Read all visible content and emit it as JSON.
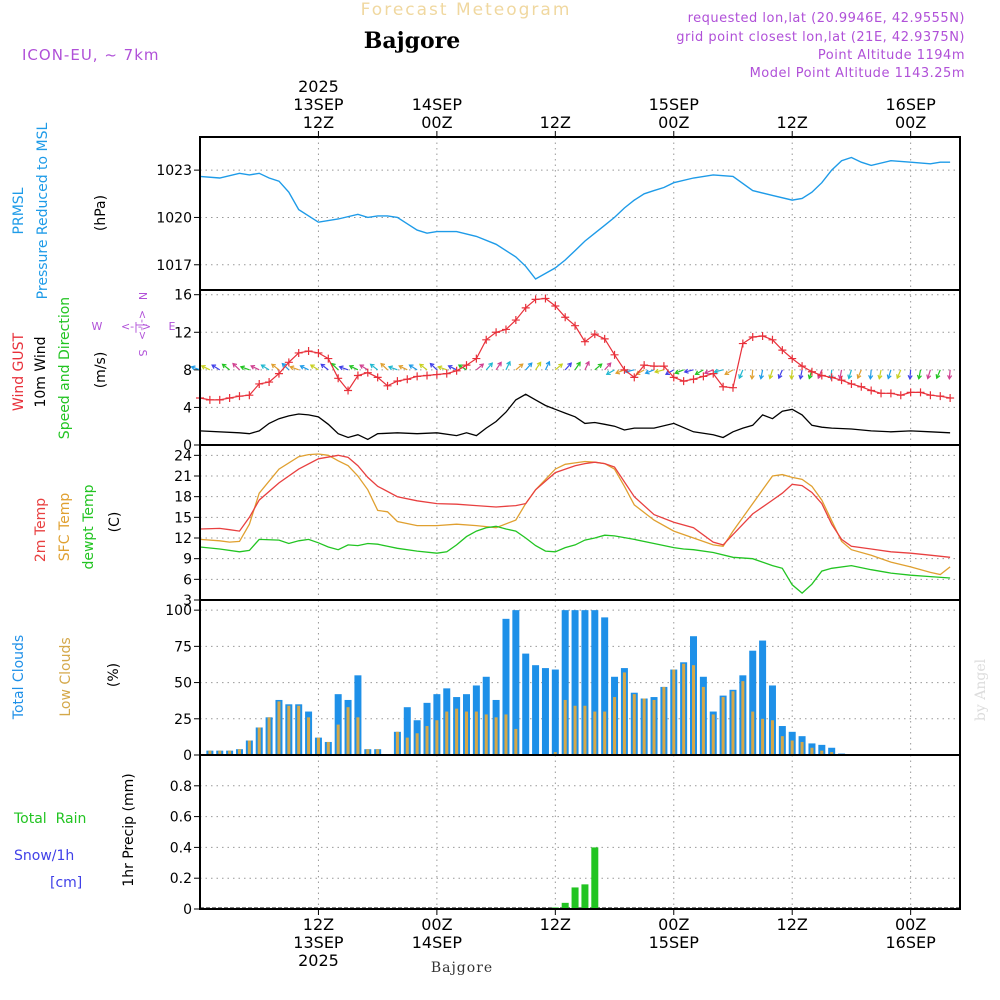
{
  "header": {
    "title": "Forecast Meteogram",
    "location": "Bajgore",
    "model": "ICON-EU, ~ 7km",
    "requested": "requested lon,lat (20.9946E, 42.9555N)",
    "grid_point": "grid point closest lon,lat (21E, 42.9375N)",
    "point_altitude": "Point Altitude 1194m",
    "model_altitude": "Model Point Altitude 1143.25m",
    "credit": "by Angel",
    "footer_location": "Bajgore"
  },
  "time_axis": {
    "top_labels": [
      {
        "x_h": 12,
        "lines": [
          "2025",
          "13SEP",
          "12Z"
        ]
      },
      {
        "x_h": 24,
        "lines": [
          "14SEP",
          "00Z"
        ]
      },
      {
        "x_h": 36,
        "lines": [
          "12Z"
        ]
      },
      {
        "x_h": 48,
        "lines": [
          "15SEP",
          "00Z"
        ]
      },
      {
        "x_h": 60,
        "lines": [
          "12Z"
        ]
      },
      {
        "x_h": 72,
        "lines": [
          "16SEP",
          "00Z"
        ]
      }
    ],
    "bottom_labels": [
      {
        "x_h": 12,
        "lines": [
          "12Z",
          "13SEP",
          "2025"
        ]
      },
      {
        "x_h": 24,
        "lines": [
          "00Z",
          "14SEP"
        ]
      },
      {
        "x_h": 36,
        "lines": [
          "12Z"
        ]
      },
      {
        "x_h": 48,
        "lines": [
          "00Z",
          "15SEP"
        ]
      },
      {
        "x_h": 60,
        "lines": [
          "12Z"
        ]
      },
      {
        "x_h": 72,
        "lines": [
          "00Z",
          "16SEP"
        ]
      }
    ]
  },
  "labels": {
    "pressure": [
      "PRMSL",
      "Pressure Reduced to MSL"
    ],
    "pressure_unit": "(hPa)",
    "wind_gust": "Wind GUST",
    "wind_10m": "10m Wind",
    "wind_speed_dir": "Speed and Direction",
    "wind_unit": "(m/s)",
    "compass": {
      "n": "N",
      "s": "S",
      "w": "W",
      "e": "E",
      "arrows": "<-|->"
    },
    "temp_2m": "2m Temp",
    "temp_sfc": "SFC Temp",
    "temp_dewpt": "dewpt Temp",
    "temp_unit": "(C)",
    "total_clouds": "Total Clouds",
    "low_clouds": "Low Clouds",
    "cloud_unit": "(%)",
    "total_rain": "Total  Rain",
    "snow": "Snow/1h",
    "snow_unit": "[cm]",
    "precip": "1hr Precip (mm)"
  },
  "colors": {
    "pressure": "#1e9be8",
    "gust": "#e8303a",
    "wind10m": "#000000",
    "temp2m": "#e84040",
    "sfc": "#e0a030",
    "dewpt": "#22c422",
    "total_cloud": "#1e90e8",
    "low_cloud": "#d4a84a",
    "rain": "#22c422",
    "snow": "#4040e8",
    "purple": "#b050d8",
    "title": "#f0d8a0"
  },
  "chart_data": [
    {
      "type": "line",
      "name": "PRMSL",
      "ylim": [
        1015.4,
        1025.1
      ],
      "yticks": [
        1017,
        1020,
        1023
      ],
      "x": [
        0,
        2,
        4,
        5,
        6,
        7,
        8,
        9,
        10,
        12,
        14,
        16,
        17,
        18,
        19,
        20,
        21,
        22,
        23,
        24,
        26,
        28,
        30,
        32,
        33,
        34,
        36,
        37,
        38,
        39,
        40,
        41,
        42,
        43,
        44,
        45,
        46,
        47,
        48,
        50,
        52,
        54,
        56,
        58,
        60,
        61,
        62,
        63,
        64,
        65,
        66,
        67,
        68,
        70,
        72,
        74,
        75,
        76
      ],
      "values": [
        1022.6,
        1022.5,
        1022.8,
        1022.7,
        1022.8,
        1022.5,
        1022.3,
        1021.6,
        1020.5,
        1019.7,
        1019.9,
        1020.2,
        1020.0,
        1020.1,
        1020.1,
        1020.0,
        1019.6,
        1019.2,
        1019.0,
        1019.1,
        1019.1,
        1018.8,
        1018.3,
        1017.5,
        1016.9,
        1016.1,
        1016.8,
        1017.3,
        1017.9,
        1018.5,
        1019.0,
        1019.5,
        1020.0,
        1020.6,
        1021.1,
        1021.5,
        1021.7,
        1021.9,
        1022.2,
        1022.5,
        1022.7,
        1022.6,
        1021.7,
        1021.4,
        1021.1,
        1021.2,
        1021.6,
        1022.2,
        1023.0,
        1023.6,
        1023.8,
        1023.5,
        1023.3,
        1023.6,
        1023.5,
        1023.4,
        1023.5,
        1023.5
      ]
    },
    {
      "type": "line",
      "name": "Wind GUST",
      "ylim": [
        0,
        16.5
      ],
      "yticks": [
        0,
        4,
        8,
        12,
        16
      ],
      "x": [
        0,
        1,
        2,
        3,
        4,
        5,
        6,
        7,
        8,
        9,
        10,
        11,
        12,
        13,
        14,
        15,
        16,
        17,
        18,
        19,
        20,
        21,
        22,
        23,
        24,
        25,
        26,
        27,
        28,
        29,
        30,
        31,
        32,
        33,
        34,
        35,
        36,
        37,
        38,
        39,
        40,
        41,
        42,
        43,
        44,
        45,
        46,
        47,
        48,
        49,
        50,
        51,
        52,
        53,
        54,
        55,
        56,
        57,
        58,
        59,
        60,
        61,
        62,
        63,
        64,
        65,
        66,
        67,
        68,
        69,
        70,
        71,
        72,
        73,
        74,
        75,
        76
      ],
      "values": [
        5.0,
        4.8,
        4.8,
        5.0,
        5.2,
        5.3,
        6.5,
        6.7,
        7.6,
        8.8,
        9.8,
        10.0,
        9.8,
        9.2,
        7.1,
        5.8,
        7.4,
        7.7,
        7.2,
        6.3,
        6.8,
        7.0,
        7.3,
        7.4,
        7.5,
        7.6,
        7.9,
        8.5,
        9.2,
        11.2,
        12.0,
        12.3,
        13.3,
        14.6,
        15.5,
        15.6,
        14.8,
        13.6,
        12.7,
        11.0,
        11.8,
        11.3,
        9.6,
        8.0,
        7.2,
        8.5,
        8.4,
        8.4,
        7.2,
        6.8,
        7.0,
        7.3,
        7.6,
        6.2,
        6.1,
        10.8,
        11.5,
        11.6,
        11.2,
        10.1,
        9.2,
        8.4,
        7.8,
        7.4,
        7.2,
        6.9,
        6.5,
        6.2,
        5.8,
        5.5,
        5.5,
        5.3,
        5.6,
        5.6,
        5.3,
        5.2,
        5.0
      ]
    },
    {
      "type": "line",
      "name": "10m Wind",
      "ylim": [
        0,
        16.5
      ],
      "x": [
        0,
        4,
        5,
        6,
        7,
        8,
        9,
        10,
        11,
        12,
        13,
        14,
        15,
        16,
        17,
        18,
        20,
        22,
        24,
        26,
        27,
        28,
        29,
        30,
        31,
        32,
        33,
        34,
        35,
        36,
        37,
        38,
        39,
        40,
        41,
        42,
        43,
        44,
        46,
        48,
        50,
        52,
        53,
        54,
        55,
        56,
        57,
        58,
        59,
        60,
        61,
        62,
        63,
        64,
        66,
        68,
        70,
        72,
        74,
        76
      ],
      "values": [
        1.5,
        1.3,
        1.2,
        1.5,
        2.3,
        2.8,
        3.1,
        3.3,
        3.2,
        3.0,
        2.2,
        1.2,
        0.8,
        1.1,
        0.6,
        1.2,
        1.3,
        1.2,
        1.3,
        1.0,
        1.3,
        1.0,
        1.8,
        2.5,
        3.5,
        4.8,
        5.4,
        4.8,
        4.2,
        3.8,
        3.4,
        3.0,
        2.3,
        2.4,
        2.2,
        2.0,
        1.6,
        1.8,
        1.8,
        2.3,
        1.4,
        1.1,
        0.8,
        1.4,
        1.8,
        2.1,
        3.2,
        2.8,
        3.6,
        3.8,
        3.2,
        2.1,
        1.9,
        1.8,
        1.7,
        1.5,
        1.4,
        1.5,
        1.4,
        1.3
      ]
    },
    {
      "type": "line",
      "name": "2m Temp",
      "ylim": [
        3,
        25.5
      ],
      "yticks": [
        3,
        6,
        9,
        12,
        15,
        18,
        21,
        24
      ],
      "x": [
        0,
        2,
        3,
        4,
        5,
        6,
        8,
        10,
        12,
        14,
        15,
        16,
        17,
        18,
        20,
        22,
        24,
        26,
        28,
        30,
        32,
        33,
        34,
        36,
        38,
        39,
        40,
        41,
        42,
        44,
        46,
        48,
        50,
        52,
        53,
        54,
        55,
        56,
        58,
        59,
        60,
        61,
        62,
        63,
        64,
        65,
        66,
        68,
        70,
        72,
        74,
        76
      ],
      "values": [
        13.3,
        13.4,
        13.2,
        13.0,
        15.0,
        17.5,
        20.0,
        22.0,
        23.5,
        24.0,
        23.7,
        22.5,
        20.8,
        19.5,
        18.0,
        17.4,
        17.0,
        16.9,
        16.7,
        16.5,
        16.7,
        17.0,
        19.0,
        21.5,
        22.5,
        22.8,
        23.0,
        22.8,
        22.3,
        18.0,
        15.4,
        14.3,
        13.5,
        11.4,
        11.0,
        12.5,
        14.0,
        15.5,
        17.5,
        18.5,
        19.8,
        19.6,
        18.6,
        17.0,
        14.0,
        11.8,
        10.8,
        10.4,
        10.0,
        9.8,
        9.5,
        9.2
      ]
    },
    {
      "type": "line",
      "name": "SFC Temp",
      "ylim": [
        3,
        25.5
      ],
      "x": [
        0,
        2,
        3,
        4,
        5,
        6,
        8,
        10,
        11,
        12,
        13,
        14,
        15,
        16,
        17,
        18,
        19,
        20,
        22,
        24,
        26,
        28,
        30,
        32,
        33,
        34,
        36,
        37,
        38,
        39,
        40,
        41,
        42,
        43,
        44,
        46,
        48,
        50,
        52,
        53,
        54,
        56,
        57,
        58,
        59,
        60,
        61,
        62,
        63,
        64,
        65,
        66,
        68,
        70,
        72,
        74,
        75,
        76
      ],
      "values": [
        11.8,
        11.6,
        11.4,
        11.5,
        14.0,
        18.5,
        22.0,
        23.8,
        24.1,
        24.2,
        24.0,
        23.2,
        22.5,
        21.0,
        19.0,
        16.0,
        15.8,
        14.4,
        13.8,
        13.8,
        14.0,
        13.8,
        13.5,
        14.6,
        17.0,
        19.0,
        22.0,
        22.7,
        22.9,
        23.1,
        23.0,
        22.8,
        22.0,
        19.5,
        16.8,
        14.6,
        13.0,
        12.0,
        11.0,
        10.8,
        13.0,
        17.0,
        19.0,
        21.0,
        21.2,
        20.8,
        20.5,
        19.5,
        17.5,
        14.5,
        11.5,
        10.3,
        9.5,
        8.5,
        7.8,
        7.0,
        6.7,
        7.8
      ]
    },
    {
      "type": "line",
      "name": "dewpt Temp",
      "ylim": [
        3,
        25.5
      ],
      "x": [
        0,
        2,
        4,
        5,
        6,
        8,
        9,
        10,
        11,
        12,
        13,
        14,
        15,
        16,
        17,
        18,
        19,
        20,
        22,
        24,
        25,
        26,
        27,
        28,
        29,
        30,
        31,
        32,
        33,
        34,
        35,
        36,
        37,
        38,
        39,
        40,
        41,
        42,
        44,
        46,
        48,
        49,
        50,
        52,
        54,
        56,
        58,
        59,
        60,
        61,
        62,
        63,
        64,
        66,
        68,
        70,
        72,
        74,
        76
      ],
      "values": [
        10.7,
        10.4,
        10.0,
        10.2,
        11.8,
        11.7,
        11.2,
        11.6,
        11.8,
        11.3,
        10.7,
        10.3,
        11.0,
        10.9,
        11.2,
        11.1,
        10.8,
        10.5,
        10.1,
        9.8,
        10.0,
        11.0,
        12.2,
        13.0,
        13.5,
        13.7,
        13.3,
        13.0,
        12.0,
        10.9,
        10.1,
        10.0,
        10.6,
        11.0,
        11.7,
        12.0,
        12.4,
        12.3,
        11.8,
        11.2,
        10.6,
        10.4,
        10.3,
        9.9,
        9.2,
        9.0,
        8.0,
        7.6,
        5.2,
        4.0,
        5.3,
        7.2,
        7.6,
        8.0,
        7.4,
        6.9,
        6.6,
        6.4,
        6.2
      ]
    },
    {
      "type": "bar",
      "name": "Clouds",
      "ylim": [
        0,
        107
      ],
      "yticks": [
        0,
        25,
        50,
        75,
        100
      ],
      "x": [
        1,
        2,
        3,
        4,
        5,
        6,
        7,
        8,
        9,
        10,
        11,
        12,
        13,
        14,
        15,
        16,
        17,
        18,
        19,
        20,
        21,
        22,
        23,
        24,
        25,
        26,
        27,
        28,
        29,
        30,
        31,
        32,
        33,
        34,
        35,
        36,
        37,
        38,
        39,
        40,
        41,
        42,
        43,
        44,
        45,
        46,
        47,
        48,
        49,
        50,
        51,
        52,
        53,
        54,
        55,
        56,
        57,
        58,
        59,
        60,
        61,
        62,
        63,
        64,
        65,
        66
      ],
      "total": [
        3,
        3,
        3,
        4,
        10,
        19,
        26,
        38,
        35,
        35,
        30,
        12,
        9,
        42,
        38,
        55,
        4,
        4,
        0,
        16,
        33,
        24,
        36,
        42,
        46,
        40,
        42,
        48,
        54,
        38,
        94,
        100,
        70,
        62,
        60,
        59,
        100,
        100,
        100,
        100,
        95,
        54,
        60,
        43,
        39,
        40,
        47,
        59,
        64,
        82,
        54,
        30,
        41,
        45,
        55,
        72,
        79,
        48,
        20,
        16,
        13,
        8,
        7,
        5,
        1,
        0
      ],
      "low": [
        3,
        3,
        3,
        4,
        10,
        19,
        26,
        37,
        34,
        34,
        26,
        12,
        9,
        21,
        33,
        26,
        4,
        4,
        0,
        16,
        12,
        15,
        20,
        24,
        30,
        32,
        30,
        30,
        28,
        26,
        28,
        18,
        0,
        0,
        0,
        2,
        38,
        34,
        34,
        30,
        30,
        40,
        57,
        42,
        39,
        38,
        47,
        59,
        63,
        62,
        47,
        28,
        40,
        44,
        51,
        30,
        25,
        24,
        13,
        10,
        9,
        5,
        3,
        2,
        0,
        0
      ]
    },
    {
      "type": "bar",
      "name": "1hr Precip",
      "ylim": [
        0,
        1.0
      ],
      "yticks": [
        0,
        0.2,
        0.4,
        0.6,
        0.8
      ],
      "x": [
        36,
        37,
        38,
        39,
        40
      ],
      "values": [
        0.01,
        0.04,
        0.14,
        0.16,
        0.4
      ]
    }
  ]
}
